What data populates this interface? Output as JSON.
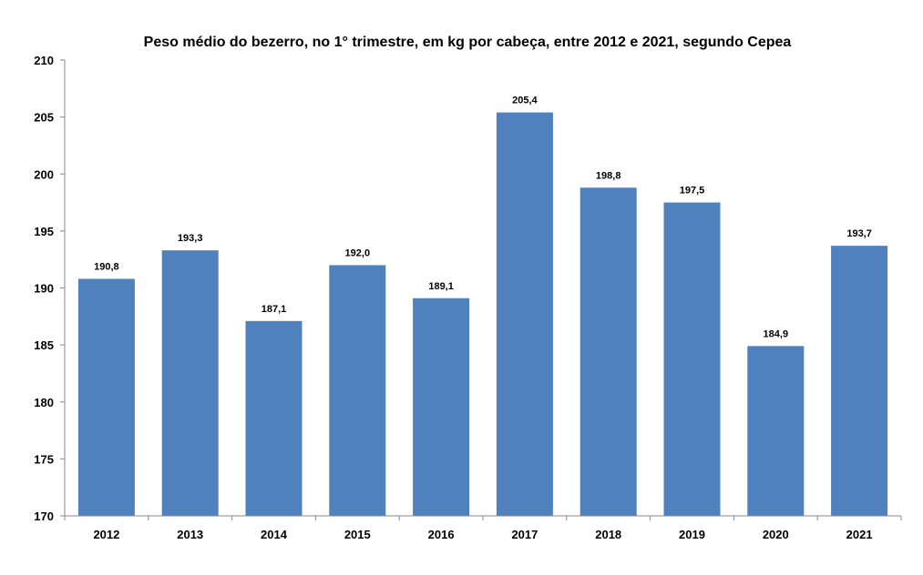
{
  "chart_data": {
    "type": "bar",
    "title": "Peso médio do bezerro, no 1° trimestre, em kg por cabeça, entre 2012 e 2021, segundo Cepea",
    "xlabel": "",
    "ylabel": "",
    "ylim": [
      170,
      210
    ],
    "yticks": [
      "170",
      "175",
      "180",
      "185",
      "190",
      "195",
      "200",
      "205",
      "210"
    ],
    "categories": [
      "2012",
      "2013",
      "2014",
      "2015",
      "2016",
      "2017",
      "2018",
      "2019",
      "2020",
      "2021"
    ],
    "values": [
      190.8,
      193.3,
      187.1,
      192.0,
      189.1,
      205.4,
      198.8,
      197.5,
      184.9,
      193.7
    ],
    "data_labels": [
      "190,8",
      "193,3",
      "187,1",
      "192,0",
      "189,1",
      "205,4",
      "198,8",
      "197,5",
      "184,9",
      "193,7"
    ],
    "grid": false,
    "legend": "none",
    "bar_color": "#4F81BD",
    "axis_color": "#888888"
  }
}
